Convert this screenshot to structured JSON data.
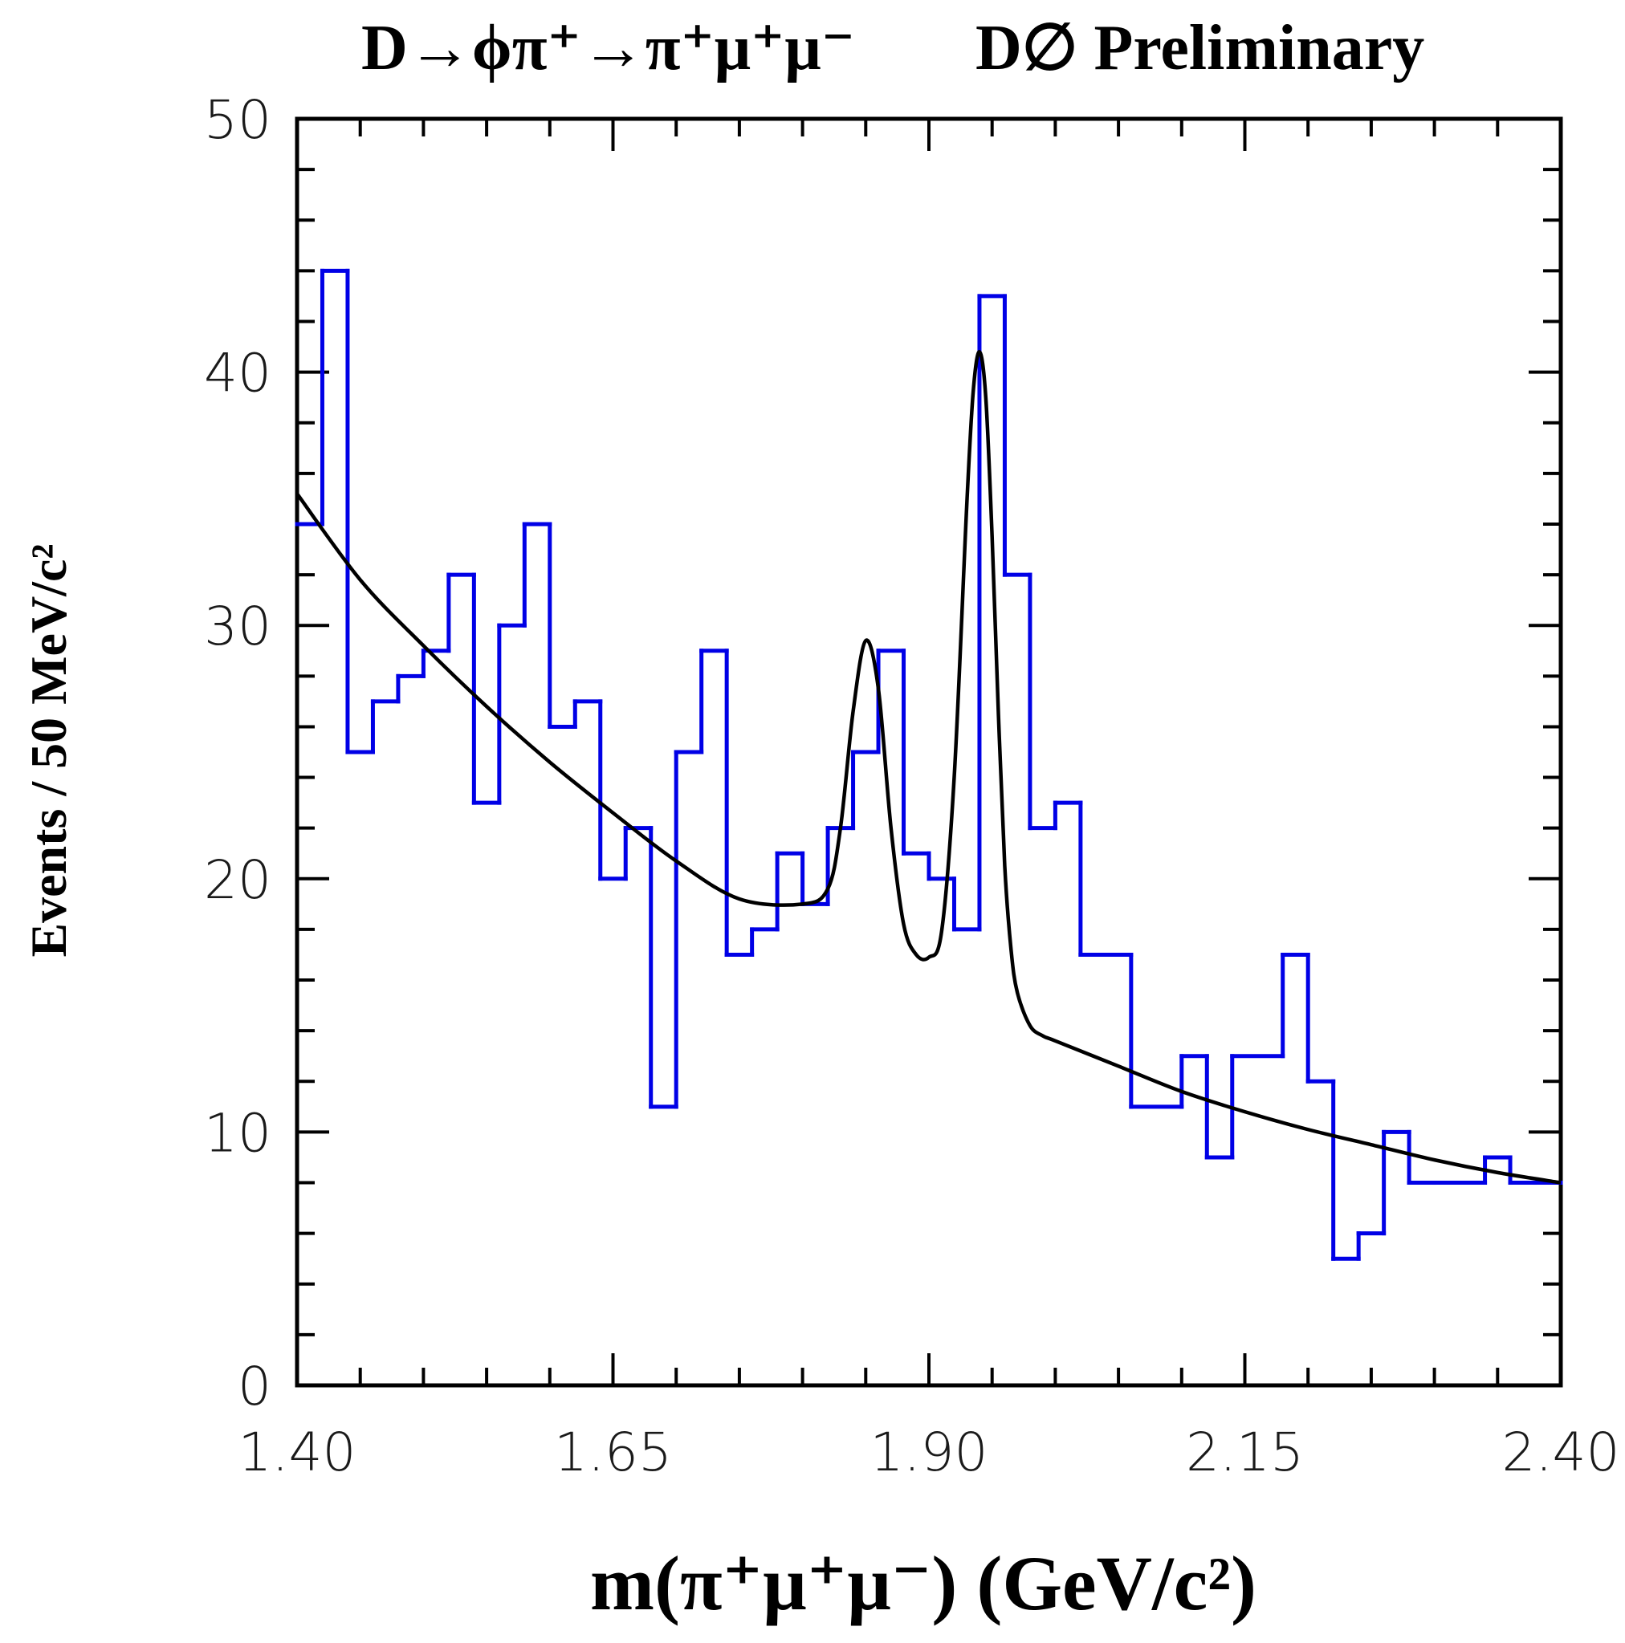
{
  "chart_data": {
    "type": "histogram",
    "title_left": "D→ϕπ⁺→π⁺μ⁺μ⁻",
    "title_right": "D∅ Preliminary",
    "xlabel": "m(π⁺μ⁺μ⁻) (GeV/c²)",
    "ylabel": "Events / 50 MeV/c²",
    "xlim": [
      1.4,
      2.4
    ],
    "ylim": [
      0,
      50
    ],
    "x_tick_labels": [
      "1.40",
      "1.65",
      "1.90",
      "2.15",
      "2.40"
    ],
    "y_tick_labels": [
      "0",
      "10",
      "20",
      "30",
      "40",
      "50"
    ],
    "histogram": {
      "name": "data",
      "color": "#0000e6",
      "bin_edges": [
        1.4,
        1.42,
        1.44,
        1.46,
        1.48,
        1.5,
        1.52,
        1.54,
        1.56,
        1.58,
        1.6,
        1.62,
        1.64,
        1.66,
        1.68,
        1.7,
        1.72,
        1.74,
        1.76,
        1.78,
        1.8,
        1.82,
        1.84,
        1.86,
        1.88,
        1.9,
        1.92,
        1.94,
        1.96,
        1.98,
        2.0,
        2.02,
        2.06,
        2.1,
        2.12,
        2.14,
        2.18,
        2.2,
        2.22,
        2.24,
        2.26,
        2.28,
        2.3,
        2.34,
        2.36,
        2.38,
        2.4
      ],
      "counts": [
        34,
        44,
        25,
        27,
        28,
        29,
        32,
        23,
        30,
        34,
        26,
        27,
        20,
        22,
        11,
        25,
        29,
        17,
        18,
        21,
        19,
        22,
        25,
        29,
        21,
        20,
        18,
        43,
        32,
        22,
        23,
        17,
        11,
        13,
        9,
        13,
        17,
        12,
        5,
        6,
        10,
        8,
        8,
        9,
        8,
        8
      ]
    },
    "fit": {
      "name": "fit",
      "color": "#000000",
      "x": [
        1.4,
        1.45,
        1.5,
        1.55,
        1.6,
        1.65,
        1.7,
        1.75,
        1.8,
        1.82,
        1.83,
        1.84,
        1.85,
        1.86,
        1.87,
        1.88,
        1.89,
        1.9,
        1.91,
        1.92,
        1.93,
        1.935,
        1.94,
        1.945,
        1.95,
        1.955,
        1.96,
        1.965,
        1.97,
        1.98,
        1.99,
        2.0,
        2.05,
        2.1,
        2.15,
        2.2,
        2.25,
        2.3,
        2.35,
        2.4
      ],
      "y": [
        35.2,
        31.8,
        29.2,
        26.8,
        24.6,
        22.6,
        20.7,
        19.2,
        19.0,
        19.6,
        22.0,
        26.6,
        29.4,
        27.5,
        22.0,
        18.2,
        17.0,
        16.9,
        17.9,
        24.0,
        34.8,
        39.2,
        40.8,
        39.0,
        33.5,
        26.5,
        20.5,
        17.2,
        15.5,
        14.2,
        13.8,
        13.6,
        12.6,
        11.6,
        10.8,
        10.1,
        9.5,
        8.9,
        8.4,
        8.0
      ]
    }
  }
}
